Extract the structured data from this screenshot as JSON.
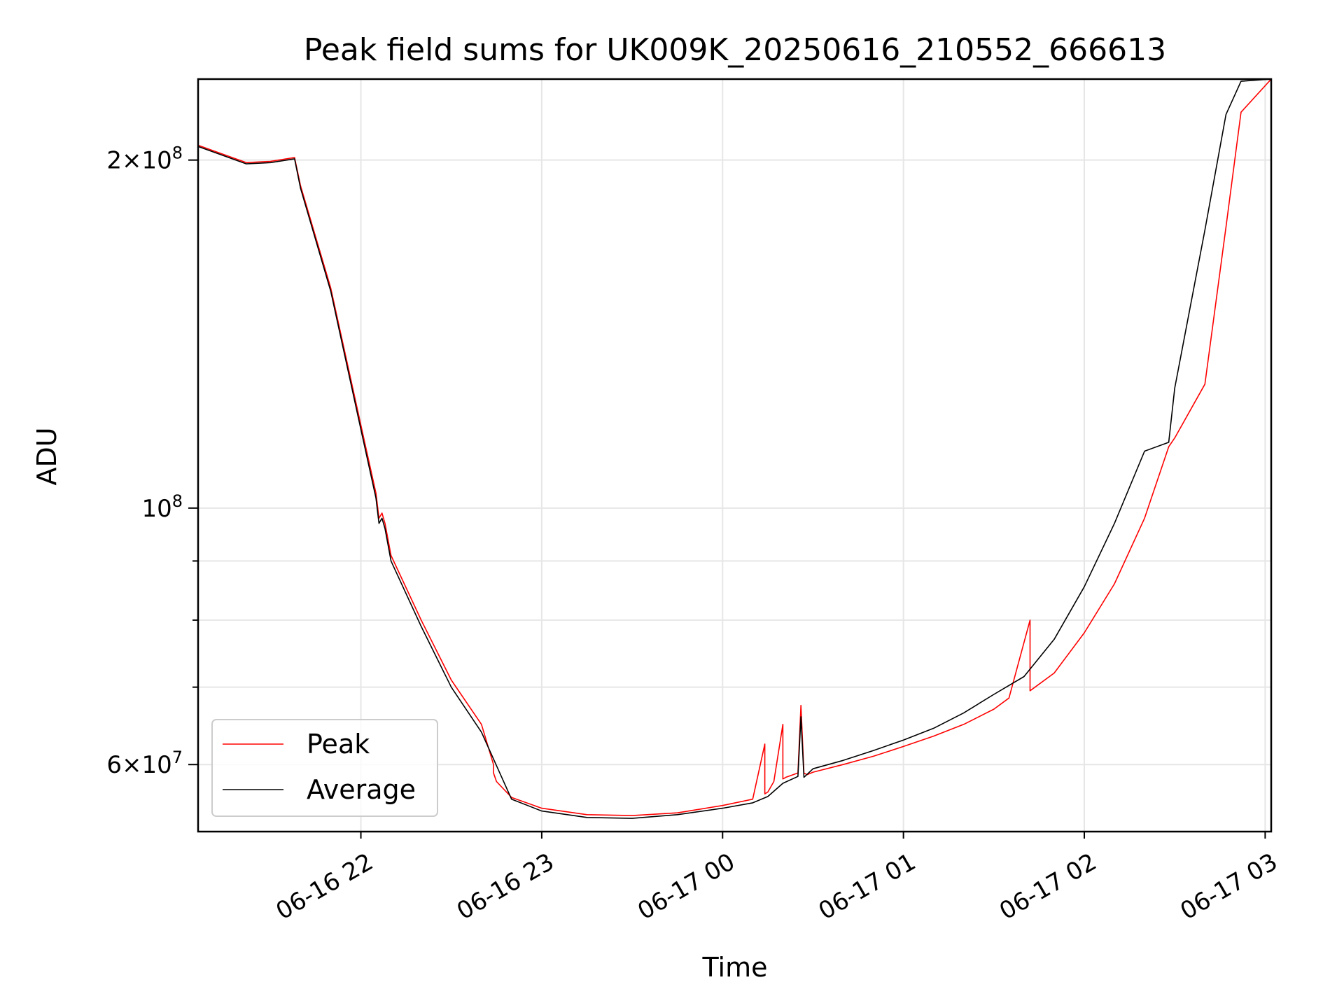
{
  "chart_data": {
    "type": "line",
    "title": "Peak field sums for UK009K_20250616_210552_666613",
    "xlabel": "Time",
    "ylabel": "ADU",
    "yscale": "log",
    "xlim": [
      "2025-06-16 21:06",
      "2025-06-17 03:02"
    ],
    "ylim": [
      52500000,
      235000000
    ],
    "grid": true,
    "legend_position": "lower-left",
    "x_ticks": [
      {
        "t": "2025-06-16 22:00",
        "label": "06-16 22"
      },
      {
        "t": "2025-06-16 23:00",
        "label": "06-16 23"
      },
      {
        "t": "2025-06-17 00:00",
        "label": "06-17 00"
      },
      {
        "t": "2025-06-17 01:00",
        "label": "06-17 01"
      },
      {
        "t": "2025-06-17 02:00",
        "label": "06-17 02"
      },
      {
        "t": "2025-06-17 03:00",
        "label": "06-17 03"
      }
    ],
    "y_ticks_major": [
      {
        "value": 60000000,
        "base": "6",
        "exp": "7"
      },
      {
        "value": 100000000,
        "base": "",
        "exp": "8"
      },
      {
        "value": 200000000,
        "base": "2",
        "exp": "8"
      }
    ],
    "y_ticks_minor": [
      70000000,
      80000000,
      90000000
    ],
    "series": [
      {
        "name": "Peak",
        "color": "#ff0000",
        "x": [
          "2025-06-16 21:06",
          "2025-06-16 21:15",
          "2025-06-16 21:22",
          "2025-06-16 21:30",
          "2025-06-16 21:38",
          "2025-06-16 21:40",
          "2025-06-16 21:50",
          "2025-06-16 22:00",
          "2025-06-16 22:05",
          "2025-06-16 22:06",
          "2025-06-16 22:07",
          "2025-06-16 22:08",
          "2025-06-16 22:10",
          "2025-06-16 22:20",
          "2025-06-16 22:30",
          "2025-06-16 22:40",
          "2025-06-16 22:44",
          "2025-06-16 22:44",
          "2025-06-16 22:45",
          "2025-06-16 22:50",
          "2025-06-16 23:00",
          "2025-06-16 23:15",
          "2025-06-16 23:30",
          "2025-06-16 23:45",
          "2025-06-17 00:00",
          "2025-06-17 00:10",
          "2025-06-17 00:14",
          "2025-06-17 00:14",
          "2025-06-17 00:15",
          "2025-06-17 00:17",
          "2025-06-17 00:20",
          "2025-06-17 00:20",
          "2025-06-17 00:21",
          "2025-06-17 00:25",
          "2025-06-17 00:26",
          "2025-06-17 00:27",
          "2025-06-17 00:28",
          "2025-06-17 00:30",
          "2025-06-17 00:40",
          "2025-06-17 00:50",
          "2025-06-17 01:00",
          "2025-06-17 01:10",
          "2025-06-17 01:20",
          "2025-06-17 01:30",
          "2025-06-17 01:35",
          "2025-06-17 01:42",
          "2025-06-17 01:42",
          "2025-06-17 01:43",
          "2025-06-17 01:50",
          "2025-06-17 02:00",
          "2025-06-17 02:10",
          "2025-06-17 02:20",
          "2025-06-17 02:28",
          "2025-06-17 02:30",
          "2025-06-17 02:40",
          "2025-06-17 02:47",
          "2025-06-17 02:52",
          "2025-06-17 03:02"
        ],
        "y": [
          206000000,
          202000000,
          199000000,
          199500000,
          201000000,
          190000000,
          155000000,
          118000000,
          103000000,
          98000000,
          99000000,
          97000000,
          91000000,
          80000000,
          71000000,
          65000000,
          60000000,
          59000000,
          58000000,
          56200000,
          55000000,
          54300000,
          54200000,
          54500000,
          55300000,
          56000000,
          62500000,
          56600000,
          56800000,
          58000000,
          65000000,
          58300000,
          58500000,
          59000000,
          67500000,
          59000000,
          58800000,
          59100000,
          60000000,
          61000000,
          62200000,
          63500000,
          65000000,
          67000000,
          68500000,
          80000000,
          69500000,
          69800000,
          72000000,
          78000000,
          86000000,
          98000000,
          113000000,
          115000000,
          128000000,
          175000000,
          220000000,
          235000000
        ]
      },
      {
        "name": "Average",
        "color": "#000000",
        "x": [
          "2025-06-16 21:06",
          "2025-06-16 21:15",
          "2025-06-16 21:22",
          "2025-06-16 21:30",
          "2025-06-16 21:38",
          "2025-06-16 21:40",
          "2025-06-16 21:50",
          "2025-06-16 22:00",
          "2025-06-16 22:05",
          "2025-06-16 22:06",
          "2025-06-16 22:07",
          "2025-06-16 22:08",
          "2025-06-16 22:10",
          "2025-06-16 22:20",
          "2025-06-16 22:30",
          "2025-06-16 22:40",
          "2025-06-16 22:50",
          "2025-06-16 23:00",
          "2025-06-16 23:15",
          "2025-06-16 23:30",
          "2025-06-16 23:45",
          "2025-06-17 00:00",
          "2025-06-17 00:10",
          "2025-06-17 00:15",
          "2025-06-17 00:20",
          "2025-06-17 00:25",
          "2025-06-17 00:26",
          "2025-06-17 00:27",
          "2025-06-17 00:30",
          "2025-06-17 00:40",
          "2025-06-17 00:50",
          "2025-06-17 01:00",
          "2025-06-17 01:10",
          "2025-06-17 01:20",
          "2025-06-17 01:30",
          "2025-06-17 01:40",
          "2025-06-17 01:50",
          "2025-06-17 02:00",
          "2025-06-17 02:10",
          "2025-06-17 02:20",
          "2025-06-17 02:28",
          "2025-06-17 02:30",
          "2025-06-17 02:40",
          "2025-06-17 02:47",
          "2025-06-17 02:52",
          "2025-06-17 03:02"
        ],
        "y": [
          205500000,
          201500000,
          198500000,
          199000000,
          200500000,
          189000000,
          154000000,
          117000000,
          102000000,
          97000000,
          98000000,
          96000000,
          90000000,
          79000000,
          70000000,
          64000000,
          56000000,
          54700000,
          54000000,
          53900000,
          54300000,
          55000000,
          55600000,
          56300000,
          57800000,
          58600000,
          66000000,
          58500000,
          59500000,
          60500000,
          61700000,
          63000000,
          64500000,
          66500000,
          69000000,
          71500000,
          77000000,
          85500000,
          97000000,
          112000000,
          114000000,
          127000000,
          174000000,
          219000000,
          234000000,
          235000000
        ]
      }
    ]
  }
}
